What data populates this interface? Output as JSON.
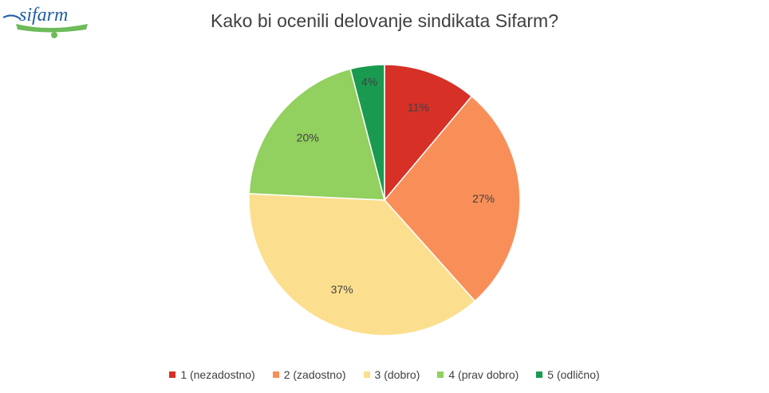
{
  "logo": {
    "text": "sifarm"
  },
  "chart_data": {
    "type": "pie",
    "title": "Kako bi ocenili delovanje sindikata Sifarm?",
    "categories": [
      "1 (nezadostno)",
      "2 (zadostno)",
      "3 (dobro)",
      "4 (prav dobro)",
      "5 (odlično)"
    ],
    "values": [
      11,
      27,
      37,
      20,
      4
    ],
    "data_labels": [
      "11%",
      "27%",
      "37%",
      "20%",
      "4%"
    ],
    "colors": [
      "#d63027",
      "#f98f58",
      "#fcdf8e",
      "#92d05f",
      "#1a9a50"
    ],
    "legend_position": "bottom"
  }
}
